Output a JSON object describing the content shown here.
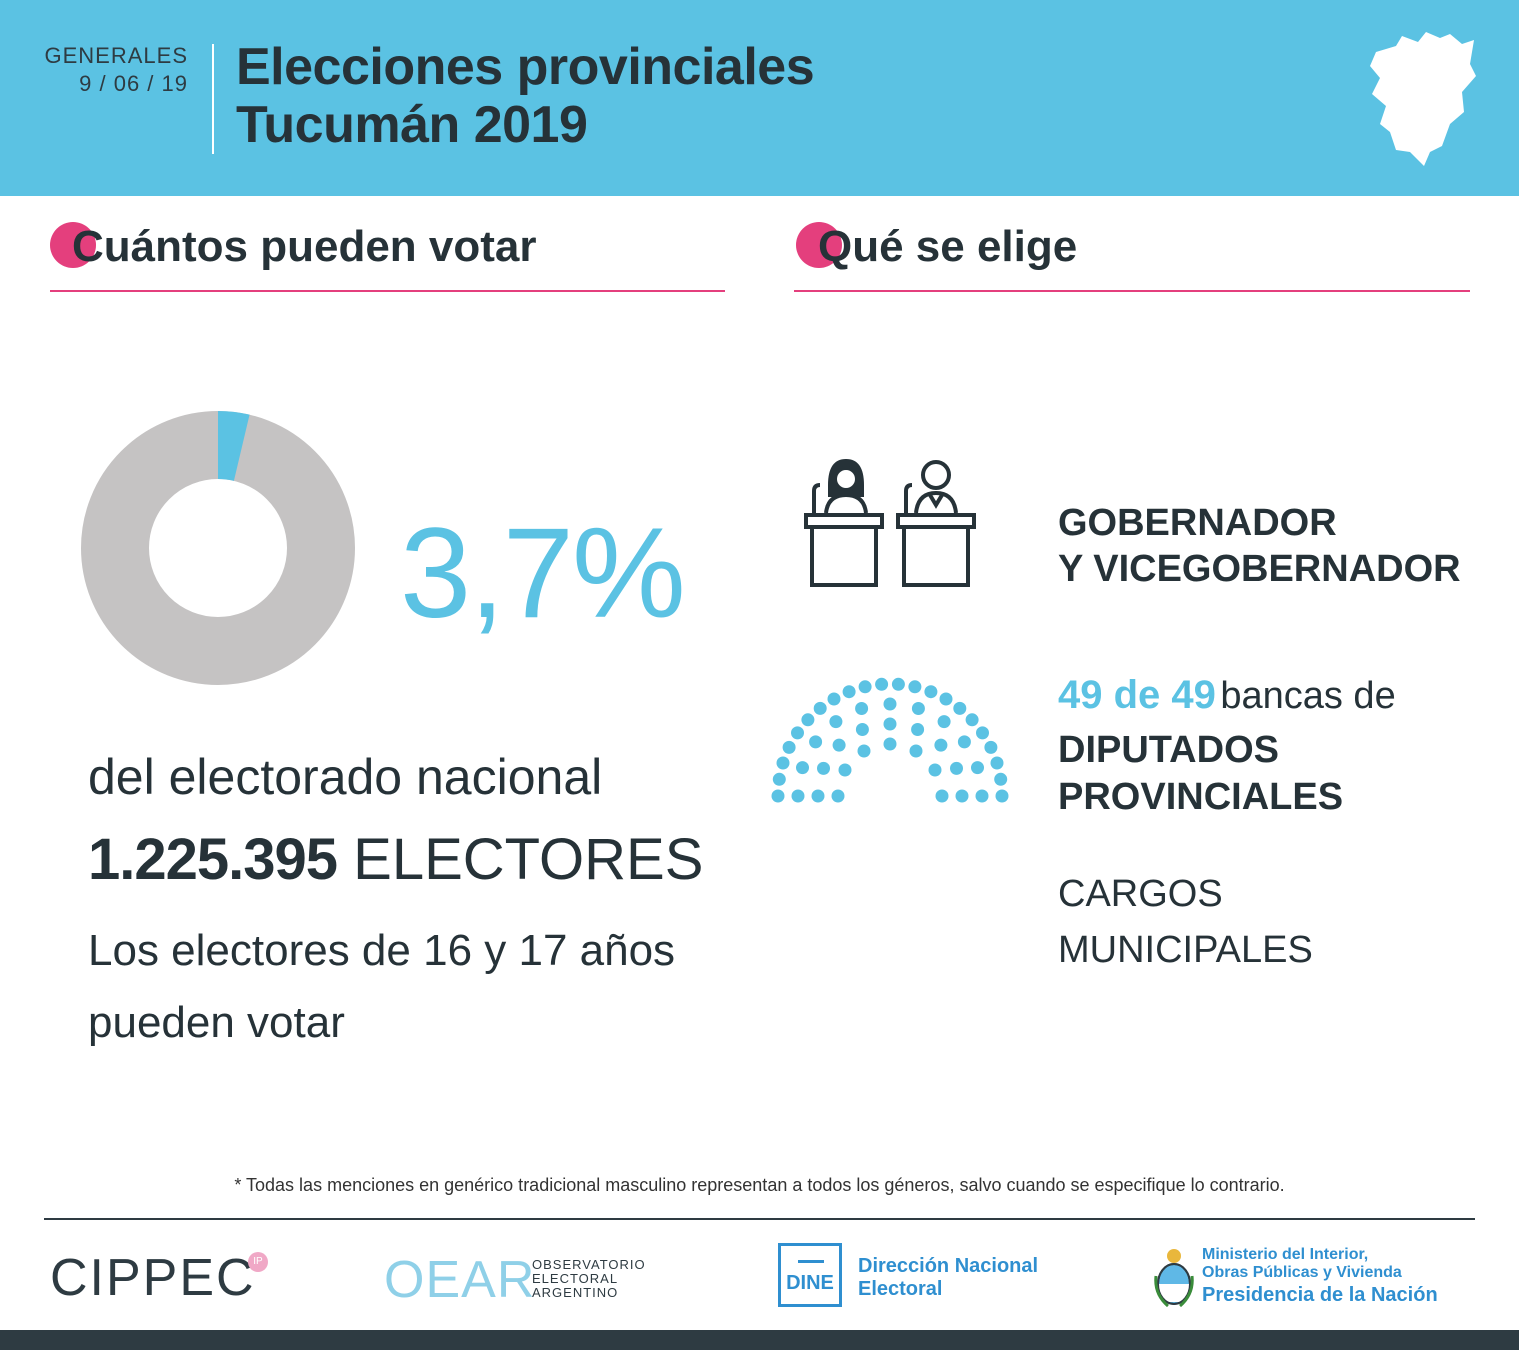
{
  "header": {
    "date_label": "GENERALES",
    "date_value": "9 / 06 / 19",
    "title_line1": "Elecciones provinciales",
    "title_line2": "Tucumán 2019",
    "map_icon": "tucuman-map-icon"
  },
  "left_section": {
    "title": "Cuántos pueden votar",
    "share_percent": 3.7,
    "percent_label": "3,7%",
    "percent_caption": "del electorado nacional",
    "electores_number": "1.225.395",
    "electores_word": "ELECTORES",
    "note_line1": "Los electores de 16 y 17 años",
    "note_line2": "pueden votar"
  },
  "right_section": {
    "title": "Qué se elige",
    "gobernador_line1": "GOBERNADOR",
    "gobernador_line2": "Y VICEGOBERNADOR",
    "diputados_count": "49 de 49",
    "diputados_bancas": "bancas de",
    "diputados_line2": "DIPUTADOS",
    "diputados_line3": "PROVINCIALES",
    "cargos_line1": "CARGOS",
    "cargos_line2": "MUNICIPALES",
    "seats_total": 49
  },
  "footer": {
    "footnote": "* Todas las menciones en genérico tradicional masculino representan a todos los géneros, salvo cuando se especifique lo contrario.",
    "cippec": "CIPPEC",
    "cippec_badge": "IP",
    "oear_big": "OEAR",
    "oear_l1": "OBSERVATORIO",
    "oear_l2": "ELECTORAL",
    "oear_l3": "ARGENTINO",
    "dine_box": "DINE",
    "dine_l1": "Dirección Nacional",
    "dine_l2": "Electoral",
    "min_l1": "Ministerio del Interior,",
    "min_l2": "Obras Públicas y Vivienda",
    "min_l3": "Presidencia de la Nación"
  },
  "colors": {
    "accent_blue": "#5bc2e3",
    "accent_pink": "#e43f7d",
    "donut_gray": "#c5c3c3",
    "dark": "#263238"
  }
}
